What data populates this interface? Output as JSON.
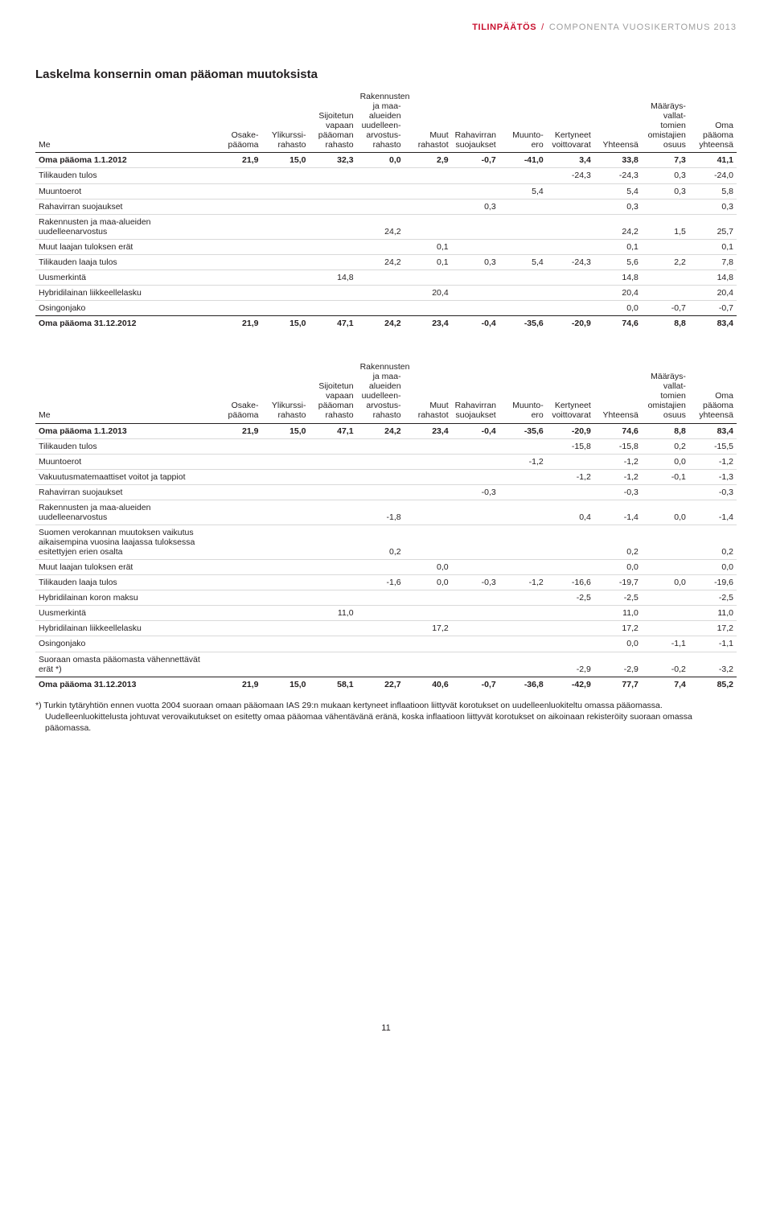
{
  "header": {
    "section": "TILINPÄÄTÖS",
    "separator": "/",
    "rest": "COMPONENTA VUOSIKERTOMUS 2013"
  },
  "title": "Laskelma konsernin oman pääoman muutoksista",
  "columns": [
    "Me",
    "Osake-\npääoma",
    "Ylikurssi-\nrahasto",
    "Sijoitetun\nvapaan\npääoman\nrahasto",
    "Rakennusten\nja maa-\nalueiden\nuudelleen-\narvostus-\nrahasto",
    "Muut\nrahastot",
    "Rahavirran\nsuojaukset",
    "Muunto-\nero",
    "Kertyneet\nvoittovarat",
    "Yhteensä",
    "Määräys-\nvallat-\ntomien\nomistajien\nosuus",
    "Oma\npääoma\nyhteensä"
  ],
  "table1": {
    "rows": [
      {
        "bold": true,
        "cells": [
          "Oma pääoma 1.1.2012",
          "21,9",
          "15,0",
          "32,3",
          "0,0",
          "2,9",
          "-0,7",
          "-41,0",
          "3,4",
          "33,8",
          "7,3",
          "41,1"
        ]
      },
      {
        "cells": [
          "Tilikauden tulos",
          "",
          "",
          "",
          "",
          "",
          "",
          "",
          "-24,3",
          "-24,3",
          "0,3",
          "-24,0"
        ]
      },
      {
        "cells": [
          "Muuntoerot",
          "",
          "",
          "",
          "",
          "",
          "",
          "5,4",
          "",
          "5,4",
          "0,3",
          "5,8"
        ]
      },
      {
        "cells": [
          "Rahavirran suojaukset",
          "",
          "",
          "",
          "",
          "",
          "0,3",
          "",
          "",
          "0,3",
          "",
          "0,3"
        ]
      },
      {
        "cells": [
          "Rakennusten ja maa-alueiden uudelleenarvostus",
          "",
          "",
          "",
          "24,2",
          "",
          "",
          "",
          "",
          "24,2",
          "1,5",
          "25,7"
        ]
      },
      {
        "cells": [
          "Muut laajan tuloksen erät",
          "",
          "",
          "",
          "",
          "0,1",
          "",
          "",
          "",
          "0,1",
          "",
          "0,1"
        ]
      },
      {
        "cells": [
          "Tilikauden laaja tulos",
          "",
          "",
          "",
          "24,2",
          "0,1",
          "0,3",
          "5,4",
          "-24,3",
          "5,6",
          "2,2",
          "7,8"
        ]
      },
      {
        "cells": [
          "Uusmerkintä",
          "",
          "",
          "14,8",
          "",
          "",
          "",
          "",
          "",
          "14,8",
          "",
          "14,8"
        ]
      },
      {
        "cells": [
          "Hybridilainan liikkeellelasku",
          "",
          "",
          "",
          "",
          "20,4",
          "",
          "",
          "",
          "20,4",
          "",
          "20,4"
        ]
      },
      {
        "cells": [
          "Osingonjako",
          "",
          "",
          "",
          "",
          "",
          "",
          "",
          "",
          "0,0",
          "-0,7",
          "-0,7"
        ],
        "last": true
      }
    ],
    "total": {
      "cells": [
        "Oma pääoma 31.12.2012",
        "21,9",
        "15,0",
        "47,1",
        "24,2",
        "23,4",
        "-0,4",
        "-35,6",
        "-20,9",
        "74,6",
        "8,8",
        "83,4"
      ]
    }
  },
  "table2": {
    "rows": [
      {
        "bold": true,
        "cells": [
          "Oma pääoma 1.1.2013",
          "21,9",
          "15,0",
          "47,1",
          "24,2",
          "23,4",
          "-0,4",
          "-35,6",
          "-20,9",
          "74,6",
          "8,8",
          "83,4"
        ]
      },
      {
        "cells": [
          "Tilikauden tulos",
          "",
          "",
          "",
          "",
          "",
          "",
          "",
          "-15,8",
          "-15,8",
          "0,2",
          "-15,5"
        ]
      },
      {
        "cells": [
          "Muuntoerot",
          "",
          "",
          "",
          "",
          "",
          "",
          "-1,2",
          "",
          "-1,2",
          "0,0",
          "-1,2"
        ]
      },
      {
        "cells": [
          "Vakuutusmatemaattiset voitot ja tappiot",
          "",
          "",
          "",
          "",
          "",
          "",
          "",
          "-1,2",
          "-1,2",
          "-0,1",
          "-1,3"
        ]
      },
      {
        "cells": [
          "Rahavirran suojaukset",
          "",
          "",
          "",
          "",
          "",
          "-0,3",
          "",
          "",
          "-0,3",
          "",
          "-0,3"
        ]
      },
      {
        "cells": [
          "Rakennusten ja maa-alueiden uudelleenarvostus",
          "",
          "",
          "",
          "-1,8",
          "",
          "",
          "",
          "0,4",
          "-1,4",
          "0,0",
          "-1,4"
        ]
      },
      {
        "cells": [
          "Suomen verokannan muutoksen vaikutus aikaisempina vuosina laajassa tuloksessa esitettyjen erien osalta",
          "",
          "",
          "",
          "0,2",
          "",
          "",
          "",
          "",
          "0,2",
          "",
          "0,2"
        ]
      },
      {
        "cells": [
          "Muut laajan tuloksen erät",
          "",
          "",
          "",
          "",
          "0,0",
          "",
          "",
          "",
          "0,0",
          "",
          "0,0"
        ]
      },
      {
        "cells": [
          "Tilikauden laaja tulos",
          "",
          "",
          "",
          "-1,6",
          "0,0",
          "-0,3",
          "-1,2",
          "-16,6",
          "-19,7",
          "0,0",
          "-19,6"
        ]
      },
      {
        "cells": [
          "Hybridilainan koron maksu",
          "",
          "",
          "",
          "",
          "",
          "",
          "",
          "-2,5",
          "-2,5",
          "",
          "-2,5"
        ]
      },
      {
        "cells": [
          "Uusmerkintä",
          "",
          "",
          "11,0",
          "",
          "",
          "",
          "",
          "",
          "11,0",
          "",
          "11,0"
        ]
      },
      {
        "cells": [
          "Hybridilainan liikkeellelasku",
          "",
          "",
          "",
          "",
          "17,2",
          "",
          "",
          "",
          "17,2",
          "",
          "17,2"
        ]
      },
      {
        "cells": [
          "Osingonjako",
          "",
          "",
          "",
          "",
          "",
          "",
          "",
          "",
          "0,0",
          "-1,1",
          "-1,1"
        ]
      },
      {
        "cells": [
          "Suoraan omasta pääomasta vähennettävät erät *)",
          "",
          "",
          "",
          "",
          "",
          "",
          "",
          "-2,9",
          "-2,9",
          "-0,2",
          "-3,2"
        ],
        "last": true
      }
    ],
    "total": {
      "cells": [
        "Oma pääoma 31.12.2013",
        "21,9",
        "15,0",
        "58,1",
        "22,7",
        "40,6",
        "-0,7",
        "-36,8",
        "-42,9",
        "77,7",
        "7,4",
        "85,2"
      ]
    }
  },
  "footnote": "*) Turkin tytäryhtiön ennen vuotta 2004 suoraan omaan pääomaan IAS 29:n mukaan kertyneet inflaatioon liittyvät korotukset on uudelleenluokiteltu omassa pääomassa. Uudelleenluokittelusta johtuvat verovaikutukset on esitetty omaa pääomaa vähentävänä eränä, koska inflaatioon liittyvät korotukset on aikoinaan rekisteröity suoraan omassa pääomassa.",
  "pagenum": "11"
}
